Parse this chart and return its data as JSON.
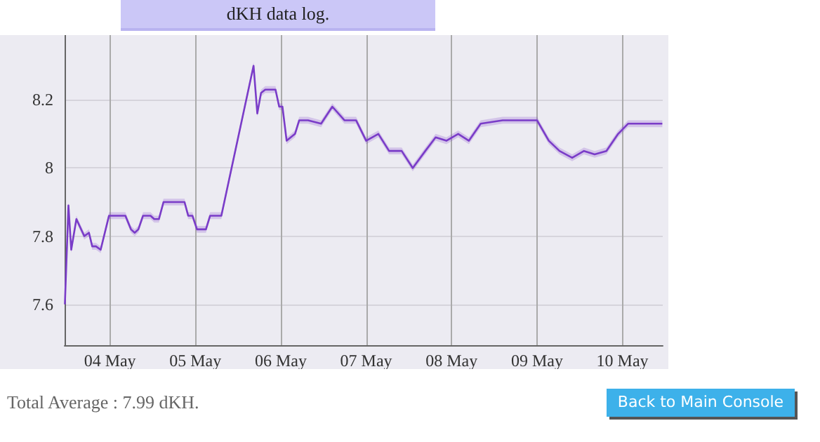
{
  "chart_data": {
    "type": "line",
    "title": "dKH data log.",
    "x": [
      "--05-03T11:20",
      "--05-03T12:20",
      "--05-03T13:07",
      "--05-03T14:34",
      "--05-03T16:47",
      "--05-03T18:06",
      "--05-03T19:01",
      "--05-03T20:04",
      "--05-03T21:23",
      "--05-03T23:44",
      "--05-04T04:20",
      "--05-04T05:54",
      "--05-04T06:57",
      "--05-04T07:59",
      "--05-04T09:18",
      "--05-04T11:24",
      "--05-04T12:26",
      "--05-04T13:45",
      "--05-04T15:03",
      "--05-04T20:57",
      "--05-04T21:59",
      "--05-04T23:10",
      "--05-05T00:28",
      "--05-05T02:58",
      "--05-05T04:09",
      "--05-05T07:18",
      "--05-05T16:21",
      "--05-05T17:24",
      "--05-05T18:27",
      "--05-05T19:38",
      "--05-05T22:31",
      "--05-05T23:33",
      "--05-06T00:28",
      "--05-06T01:39",
      "--05-06T04:00",
      "--05-06T05:11",
      "--05-06T07:40",
      "--05-06T11:20",
      "--05-06T14:29",
      "--05-06T17:53",
      "--05-06T21:09",
      "--05-07T00:00",
      "--05-07T03:25",
      "--05-07T06:26",
      "--05-07T09:58",
      "--05-07T13:05",
      "--05-07T16:37",
      "--05-07T19:31",
      "--05-07T22:32",
      "--05-08T01:51",
      "--05-08T04:52",
      "--05-08T08:11",
      "--05-08T14:21",
      "--05-09T00:00",
      "--05-09T03:19",
      "--05-09T06:19",
      "--05-09T09:53",
      "--05-09T13:12",
      "--05-09T16:12",
      "--05-09T19:30",
      "--05-09T22:48",
      "--05-10T01:35",
      "--05-10T11:13"
    ],
    "series": [
      {
        "color": "#7a3cc8",
        "values": [
          7.6,
          7.89,
          7.76,
          7.85,
          7.8,
          7.81,
          7.77,
          7.77,
          7.76,
          7.86,
          7.86,
          7.82,
          7.81,
          7.82,
          7.86,
          7.86,
          7.85,
          7.85,
          7.9,
          7.9,
          7.86,
          7.86,
          7.82,
          7.82,
          7.86,
          7.86,
          8.3,
          8.16,
          8.22,
          8.23,
          8.23,
          8.18,
          8.18,
          8.08,
          8.1,
          8.14,
          8.14,
          8.13,
          8.18,
          8.14,
          8.14,
          8.08,
          8.1,
          8.05,
          8.05,
          8,
          8.05,
          8.09,
          8.08,
          8.1,
          8.08,
          8.13,
          8.14,
          8.14,
          8.08,
          8.05,
          8.03,
          8.05,
          8.04,
          8.05,
          8.1,
          8.13,
          8.13
        ],
        "lower": [
          7.59,
          7.88,
          7.75,
          7.84,
          7.79,
          7.8,
          7.76,
          7.76,
          7.75,
          7.85,
          7.85,
          7.81,
          7.8,
          7.81,
          7.85,
          7.85,
          7.84,
          7.84,
          7.89,
          7.89,
          7.85,
          7.85,
          7.81,
          7.81,
          7.85,
          7.85,
          8.29,
          8.15,
          8.21,
          8.22,
          8.22,
          8.17,
          8.17,
          8.07,
          8.09,
          8.13,
          8.13,
          8.12,
          8.17,
          8.13,
          8.13,
          8.07,
          8.09,
          8.04,
          8.04,
          7.99,
          8.04,
          8.08,
          8.07,
          8.09,
          8.07,
          8.12,
          8.13,
          8.13,
          8.07,
          8.04,
          8.02,
          8.04,
          8.03,
          8.04,
          8.09,
          8.12,
          8.12
        ],
        "upper": [
          7.61,
          7.9,
          7.77,
          7.86,
          7.81,
          7.82,
          7.78,
          7.78,
          7.77,
          7.87,
          7.87,
          7.83,
          7.82,
          7.83,
          7.87,
          7.87,
          7.86,
          7.86,
          7.91,
          7.91,
          7.87,
          7.87,
          7.83,
          7.83,
          7.87,
          7.87,
          8.31,
          8.17,
          8.23,
          8.24,
          8.24,
          8.19,
          8.19,
          8.09,
          8.11,
          8.15,
          8.15,
          8.14,
          8.19,
          8.15,
          8.15,
          8.09,
          8.11,
          8.06,
          8.06,
          8.01,
          8.06,
          8.1,
          8.09,
          8.11,
          8.09,
          8.14,
          8.15,
          8.15,
          8.09,
          8.06,
          8.04,
          8.06,
          8.05,
          8.06,
          8.11,
          8.14,
          8.14
        ]
      }
    ],
    "xlim": [
      "--05-03T11:15",
      "--05-10T11:20"
    ],
    "xticks": [
      {
        "value": "--05-04",
        "label": "04 May"
      },
      {
        "value": "--05-05",
        "label": "05 May"
      },
      {
        "value": "--05-06",
        "label": "06 May"
      },
      {
        "value": "--05-07",
        "label": "07 May"
      },
      {
        "value": "--05-08",
        "label": "08 May"
      },
      {
        "value": "--05-09",
        "label": "09 May"
      },
      {
        "value": "--05-10",
        "label": "10 May"
      }
    ],
    "ylim": [
      7.48,
      8.39
    ],
    "yticks": [
      7.6,
      7.8,
      8,
      8.2
    ],
    "grid": true,
    "marker": "none",
    "line_style": "solid",
    "annotations": [
      "Total Average : 7.99 dKH.",
      "Back to Main Console"
    ]
  }
}
